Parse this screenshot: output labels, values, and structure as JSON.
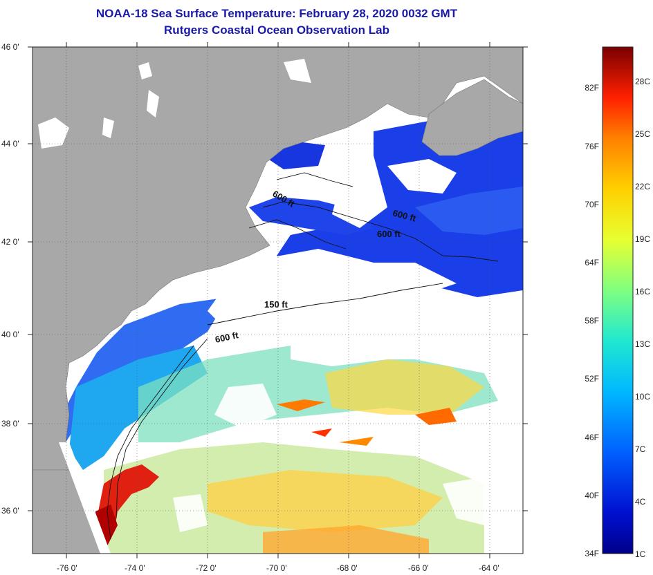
{
  "title": "NOAA-18 Sea Surface Temperature:  February 28, 2020 0032 GMT",
  "subtitle": "Rutgers Coastal Ocean Observation Lab",
  "axes": {
    "lat_labels": [
      "46 0'",
      "44 0'",
      "42 0'",
      "40 0'",
      "38 0'",
      "36 0'"
    ],
    "lon_labels": [
      "-76 0'",
      "-74 0'",
      "-72 0'",
      "-70 0'",
      "-68 0'",
      "-66 0'",
      "-64 0'"
    ]
  },
  "contours": {
    "label_600a": "600 ft",
    "label_600b": "600 ft",
    "label_600c": "600 ft",
    "label_150": "150 ft",
    "label_600d": "600 ft"
  },
  "colorbar": {
    "fahrenheit": [
      "82F",
      "76F",
      "70F",
      "64F",
      "58F",
      "52F",
      "46F",
      "40F",
      "34F"
    ],
    "celsius": [
      "28C",
      "25C",
      "22C",
      "19C",
      "16C",
      "13C",
      "10C",
      "7C",
      "4C",
      "1C"
    ],
    "colors": [
      "#7a0000",
      "#d40000",
      "#ff3300",
      "#ff8000",
      "#ffcc00",
      "#ffff33",
      "#99ff66",
      "#33ffcc",
      "#00ccff",
      "#0077ff",
      "#0022dd",
      "#00008a"
    ]
  },
  "colors": {
    "land": "#a8a8a8",
    "cloud": "#ffffff",
    "title": "#1a1aa8"
  }
}
